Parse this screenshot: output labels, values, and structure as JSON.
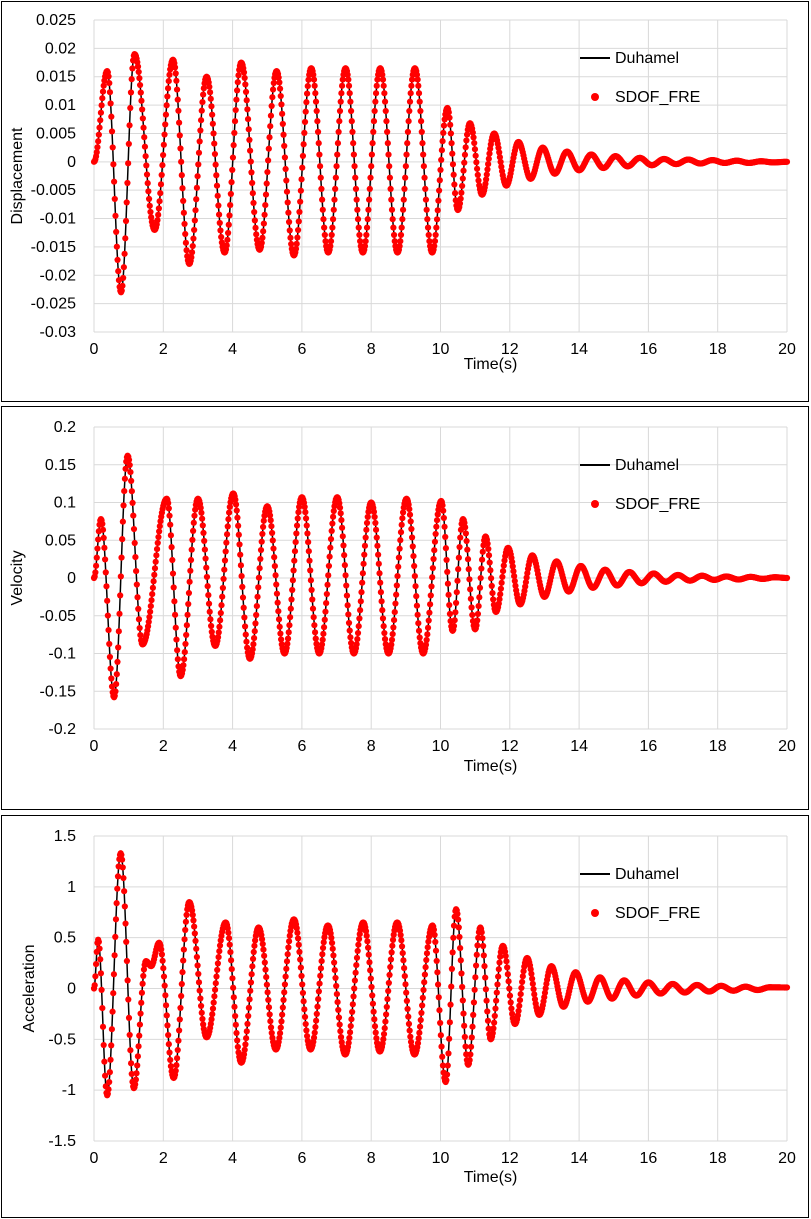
{
  "colors": {
    "duhamel": "#000000",
    "sdof": "#ff0000",
    "grid": "#d9d9d9"
  },
  "chart_data": [
    {
      "type": "line",
      "ylabel": "Displacement",
      "xlabel": "Time(s)",
      "xlim": [
        0,
        20
      ],
      "ylim": [
        -0.03,
        0.025
      ],
      "yticks": [
        "0.025",
        "0.02",
        "0.015",
        "0.01",
        "0.005",
        "0",
        "-0.005",
        "-0.01",
        "-0.015",
        "-0.02",
        "-0.025",
        "-0.03"
      ],
      "xticks": [
        "0",
        "2",
        "4",
        "6",
        "8",
        "10",
        "12",
        "14",
        "16",
        "18",
        "20"
      ],
      "legend": [
        "Duhamel",
        "SDOF_FRE"
      ],
      "legend_position": "top-right",
      "grid": true,
      "series": [
        {
          "name": "Duhamel",
          "style": "line"
        },
        {
          "name": "SDOF_FRE",
          "style": "markers"
        }
      ],
      "extrema": [
        [
          0,
          0
        ],
        [
          0.38,
          0.016
        ],
        [
          0.78,
          -0.023
        ],
        [
          1.17,
          0.019
        ],
        [
          1.75,
          -0.012
        ],
        [
          2.28,
          0.018
        ],
        [
          2.75,
          -0.018
        ],
        [
          3.25,
          0.015
        ],
        [
          3.77,
          -0.016
        ],
        [
          4.25,
          0.0175
        ],
        [
          4.78,
          -0.0155
        ],
        [
          5.27,
          0.016
        ],
        [
          5.77,
          -0.0165
        ],
        [
          6.27,
          0.0165
        ],
        [
          6.76,
          -0.016
        ],
        [
          7.26,
          0.0165
        ],
        [
          7.76,
          -0.016
        ],
        [
          8.26,
          0.0165
        ],
        [
          8.76,
          -0.016
        ],
        [
          9.26,
          0.0165
        ],
        [
          9.76,
          -0.016
        ],
        [
          10.2,
          0.0095
        ],
        [
          10.5,
          -0.0085
        ],
        [
          10.85,
          0.0068
        ],
        [
          11.2,
          -0.0058
        ],
        [
          11.55,
          0.005
        ],
        [
          11.9,
          -0.0042
        ],
        [
          12.25,
          0.0035
        ],
        [
          12.6,
          -0.003
        ],
        [
          12.95,
          0.0025
        ],
        [
          13.3,
          -0.0021
        ],
        [
          13.65,
          0.0018
        ],
        [
          14.0,
          -0.0015
        ],
        [
          14.35,
          0.0013
        ],
        [
          14.7,
          -0.0011
        ],
        [
          15.05,
          0.001
        ],
        [
          15.4,
          -0.0008
        ],
        [
          15.75,
          0.0007
        ],
        [
          16.1,
          -0.0006
        ],
        [
          16.45,
          0.0005
        ],
        [
          16.8,
          -0.0004
        ],
        [
          17.15,
          0.0004
        ],
        [
          17.5,
          -0.0003
        ],
        [
          17.85,
          0.0003
        ],
        [
          18.2,
          -0.0002
        ],
        [
          18.55,
          0.0002
        ],
        [
          18.9,
          -0.0002
        ],
        [
          19.25,
          0.0001
        ],
        [
          19.6,
          -0.0001
        ],
        [
          20,
          0
        ]
      ]
    },
    {
      "type": "line",
      "ylabel": "Velocity",
      "xlabel": "Time(s)",
      "xlim": [
        0,
        20
      ],
      "ylim": [
        -0.2,
        0.2
      ],
      "yticks": [
        "0.2",
        "0.15",
        "0.1",
        "0.05",
        "0",
        "-0.05",
        "-0.1",
        "-0.15",
        "-0.2"
      ],
      "xticks": [
        "0",
        "2",
        "4",
        "6",
        "8",
        "10",
        "12",
        "14",
        "16",
        "18",
        "20"
      ],
      "legend": [
        "Duhamel",
        "SDOF_FRE"
      ],
      "legend_position": "top-right",
      "grid": true,
      "series": [
        {
          "name": "Duhamel",
          "style": "line"
        },
        {
          "name": "SDOF_FRE",
          "style": "markers"
        }
      ],
      "extrema": [
        [
          0,
          0
        ],
        [
          0.2,
          0.078
        ],
        [
          0.58,
          -0.158
        ],
        [
          0.97,
          0.162
        ],
        [
          1.4,
          -0.088
        ],
        [
          2.1,
          0.105
        ],
        [
          2.5,
          -0.13
        ],
        [
          3.0,
          0.105
        ],
        [
          3.5,
          -0.09
        ],
        [
          4.02,
          0.112
        ],
        [
          4.5,
          -0.107
        ],
        [
          5.0,
          0.095
        ],
        [
          5.5,
          -0.1
        ],
        [
          6.0,
          0.107
        ],
        [
          6.5,
          -0.1
        ],
        [
          7.02,
          0.107
        ],
        [
          7.5,
          -0.1
        ],
        [
          8.0,
          0.1
        ],
        [
          8.5,
          -0.1
        ],
        [
          9.02,
          0.105
        ],
        [
          9.5,
          -0.1
        ],
        [
          10.02,
          0.102
        ],
        [
          10.35,
          -0.07
        ],
        [
          10.65,
          0.078
        ],
        [
          11.0,
          -0.068
        ],
        [
          11.3,
          0.055
        ],
        [
          11.6,
          -0.045
        ],
        [
          11.95,
          0.04
        ],
        [
          12.3,
          -0.035
        ],
        [
          12.65,
          0.03
        ],
        [
          13.0,
          -0.025
        ],
        [
          13.35,
          0.022
        ],
        [
          13.7,
          -0.018
        ],
        [
          14.05,
          0.016
        ],
        [
          14.4,
          -0.013
        ],
        [
          14.75,
          0.011
        ],
        [
          15.1,
          -0.01
        ],
        [
          15.45,
          0.008
        ],
        [
          15.8,
          -0.007
        ],
        [
          16.15,
          0.006
        ],
        [
          16.5,
          -0.005
        ],
        [
          16.85,
          0.004
        ],
        [
          17.2,
          -0.0035
        ],
        [
          17.55,
          0.003
        ],
        [
          17.9,
          -0.0025
        ],
        [
          18.25,
          0.002
        ],
        [
          18.6,
          -0.002
        ],
        [
          18.95,
          0.0015
        ],
        [
          19.3,
          -0.0012
        ],
        [
          19.65,
          0.001
        ],
        [
          20,
          0
        ]
      ]
    },
    {
      "type": "line",
      "ylabel": "Acceleration",
      "xlabel": "Time(s)",
      "xlim": [
        0,
        20
      ],
      "ylim": [
        -1.5,
        1.5
      ],
      "yticks": [
        "1.5",
        "1",
        "0.5",
        "0",
        "-0.5",
        "-1",
        "-1.5"
      ],
      "xticks": [
        "0",
        "2",
        "4",
        "6",
        "8",
        "10",
        "12",
        "14",
        "16",
        "18",
        "20"
      ],
      "legend": [
        "Duhamel",
        "SDOF_FRE"
      ],
      "legend_position": "top-right",
      "grid": true,
      "series": [
        {
          "name": "Duhamel",
          "style": "line"
        },
        {
          "name": "SDOF_FRE",
          "style": "markers"
        }
      ],
      "extrema": [
        [
          0,
          0
        ],
        [
          0.12,
          0.48
        ],
        [
          0.38,
          -1.05
        ],
        [
          0.77,
          1.33
        ],
        [
          1.15,
          -0.98
        ],
        [
          1.5,
          0.27
        ],
        [
          1.65,
          0.22
        ],
        [
          1.88,
          0.45
        ],
        [
          2.3,
          -0.88
        ],
        [
          2.75,
          0.85
        ],
        [
          3.25,
          -0.48
        ],
        [
          3.8,
          0.65
        ],
        [
          4.25,
          -0.73
        ],
        [
          4.75,
          0.6
        ],
        [
          5.25,
          -0.6
        ],
        [
          5.77,
          0.68
        ],
        [
          6.25,
          -0.6
        ],
        [
          6.75,
          0.62
        ],
        [
          7.25,
          -0.65
        ],
        [
          7.77,
          0.65
        ],
        [
          8.25,
          -0.62
        ],
        [
          8.75,
          0.65
        ],
        [
          9.25,
          -0.65
        ],
        [
          9.77,
          0.62
        ],
        [
          10.15,
          -0.92
        ],
        [
          10.45,
          0.78
        ],
        [
          10.8,
          -0.75
        ],
        [
          11.15,
          0.6
        ],
        [
          11.45,
          -0.5
        ],
        [
          11.8,
          0.42
        ],
        [
          12.15,
          -0.35
        ],
        [
          12.5,
          0.3
        ],
        [
          12.85,
          -0.26
        ],
        [
          13.2,
          0.22
        ],
        [
          13.55,
          -0.18
        ],
        [
          13.9,
          0.16
        ],
        [
          14.25,
          -0.13
        ],
        [
          14.6,
          0.11
        ],
        [
          14.95,
          -0.1
        ],
        [
          15.3,
          0.08
        ],
        [
          15.65,
          -0.07
        ],
        [
          16.0,
          0.06
        ],
        [
          16.35,
          -0.05
        ],
        [
          16.7,
          0.045
        ],
        [
          17.05,
          -0.04
        ],
        [
          17.4,
          0.035
        ],
        [
          17.75,
          -0.03
        ],
        [
          18.1,
          0.026
        ],
        [
          18.45,
          -0.022
        ],
        [
          18.8,
          0.018
        ],
        [
          19.15,
          -0.015
        ],
        [
          19.5,
          0.012
        ],
        [
          20,
          0.01
        ]
      ]
    }
  ]
}
